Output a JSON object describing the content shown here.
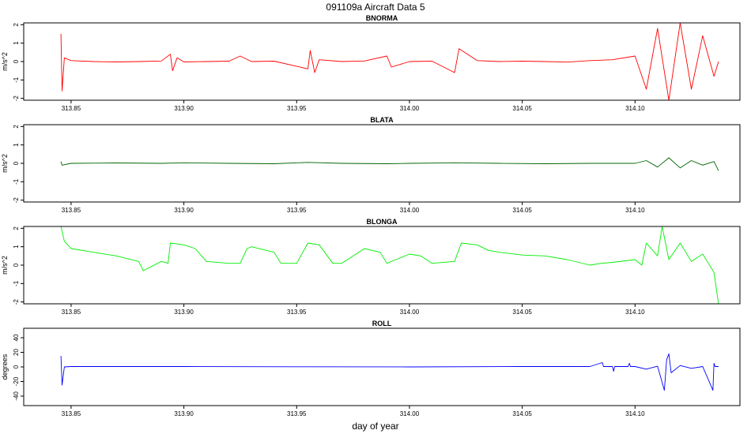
{
  "title": "091109a   Aircraft Data 5",
  "xlabel": "day of year",
  "chart_data": [
    {
      "type": "line",
      "title": "BNORMA",
      "ylabel": "m/s^2",
      "color": "#ff0000",
      "xlim": [
        313.829,
        314.1465
      ],
      "ylim": [
        -2.1,
        2.1
      ],
      "xticks": [
        313.85,
        313.9,
        313.95,
        314.0,
        314.05,
        314.1
      ],
      "xtick_labels": [
        "313.85",
        "313.90",
        "313.95",
        "314.00",
        "314.05",
        "314.10"
      ],
      "yticks": [
        -2,
        -1,
        0,
        1,
        2
      ],
      "ytick_labels": [
        "-2",
        "-1",
        "0",
        "1",
        "2"
      ],
      "series": [
        {
          "x": [
            313.8455,
            313.846,
            313.847,
            313.85,
            313.86,
            313.87,
            313.88,
            313.89,
            313.894,
            313.895,
            313.897,
            313.9,
            313.91,
            313.92,
            313.925,
            313.93,
            313.94,
            313.955,
            313.956,
            313.958,
            313.96,
            313.97,
            313.98,
            313.99,
            313.992,
            314.0,
            314.01,
            314.02,
            314.022,
            314.03,
            314.04,
            314.05,
            314.06,
            314.07,
            314.08,
            314.09,
            314.1,
            314.105,
            314.11,
            314.115,
            314.12,
            314.125,
            314.13,
            314.135,
            314.137
          ],
          "y": [
            1.5,
            -1.6,
            0.2,
            0.05,
            0.0,
            -0.02,
            0.0,
            0.03,
            0.4,
            -0.5,
            0.2,
            -0.02,
            0.0,
            0.02,
            0.3,
            0.0,
            0.02,
            -0.4,
            0.6,
            -0.6,
            0.1,
            0.0,
            0.03,
            0.3,
            -0.3,
            0.0,
            0.02,
            -0.6,
            0.7,
            0.05,
            0.0,
            0.02,
            0.0,
            -0.03,
            0.05,
            0.1,
            0.3,
            -1.5,
            1.8,
            -2.1,
            2.1,
            -1.5,
            1.4,
            -0.8,
            0.0
          ]
        }
      ]
    },
    {
      "type": "line",
      "title": "BLATA",
      "ylabel": "m/s^2",
      "color": "#006400",
      "xlim": [
        313.829,
        314.1465
      ],
      "ylim": [
        -2.1,
        2.1
      ],
      "xticks": [
        313.85,
        313.9,
        313.95,
        314.0,
        314.05,
        314.1
      ],
      "xtick_labels": [
        "313.85",
        "313.90",
        "313.95",
        "314.00",
        "314.05",
        "314.10"
      ],
      "yticks": [
        -2,
        -1,
        0,
        1,
        2
      ],
      "ytick_labels": [
        "-2",
        "-1",
        "0",
        "1",
        "2"
      ],
      "series": [
        {
          "x": [
            313.8455,
            313.846,
            313.85,
            313.87,
            313.89,
            313.9,
            313.92,
            313.94,
            313.955,
            313.97,
            313.99,
            314.0,
            314.02,
            314.04,
            314.06,
            314.08,
            314.1,
            314.105,
            314.11,
            314.115,
            314.12,
            314.125,
            314.13,
            314.135,
            314.137
          ],
          "y": [
            0.1,
            -0.1,
            0.0,
            0.02,
            0.0,
            0.03,
            0.0,
            -0.02,
            0.05,
            0.0,
            -0.02,
            0.0,
            0.03,
            0.0,
            -0.02,
            0.0,
            0.0,
            0.15,
            -0.2,
            0.3,
            -0.25,
            0.15,
            -0.1,
            0.1,
            -0.4
          ]
        }
      ]
    },
    {
      "type": "line",
      "title": "BLONGA",
      "ylabel": "m/s^2",
      "color": "#00ee00",
      "xlim": [
        313.829,
        314.1465
      ],
      "ylim": [
        -2.1,
        2.1
      ],
      "xticks": [
        313.85,
        313.9,
        313.95,
        314.0,
        314.05,
        314.1
      ],
      "xtick_labels": [
        "313.85",
        "313.90",
        "313.95",
        "314.00",
        "314.05",
        "314.10"
      ],
      "yticks": [
        -2,
        -1,
        0,
        1,
        2
      ],
      "ytick_labels": [
        "-2",
        "-1",
        "0",
        "1",
        "2"
      ],
      "series": [
        {
          "x": [
            313.8455,
            313.847,
            313.85,
            313.86,
            313.87,
            313.88,
            313.882,
            313.89,
            313.893,
            313.894,
            313.9,
            313.905,
            313.91,
            313.92,
            313.925,
            313.928,
            313.93,
            313.94,
            313.943,
            313.95,
            313.95,
            313.955,
            313.96,
            313.966,
            313.97,
            313.98,
            313.987,
            313.99,
            314.0,
            314.005,
            314.01,
            314.02,
            314.023,
            314.03,
            314.035,
            314.04,
            314.05,
            314.06,
            314.07,
            314.08,
            314.085,
            314.09,
            314.1,
            314.103,
            314.105,
            314.11,
            314.112,
            314.115,
            314.12,
            314.125,
            314.13,
            314.135,
            314.137
          ],
          "y": [
            2.1,
            1.3,
            0.9,
            0.7,
            0.5,
            0.2,
            -0.3,
            0.2,
            0.1,
            1.2,
            1.1,
            0.9,
            0.2,
            0.1,
            0.1,
            0.9,
            1.0,
            0.7,
            0.1,
            0.1,
            0.1,
            1.2,
            1.1,
            0.1,
            0.1,
            0.9,
            0.7,
            0.1,
            0.6,
            0.5,
            0.1,
            0.2,
            1.2,
            1.1,
            0.8,
            0.7,
            0.55,
            0.5,
            0.3,
            0.0,
            0.1,
            0.15,
            0.3,
            0.0,
            1.2,
            0.5,
            2.1,
            0.3,
            1.2,
            0.2,
            0.6,
            -0.4,
            -2.1
          ]
        }
      ]
    },
    {
      "type": "line",
      "title": "ROLL",
      "ylabel": "degrees",
      "color": "#0000ff",
      "xlim": [
        313.829,
        314.1465
      ],
      "ylim": [
        -53,
        53
      ],
      "xticks": [
        313.85,
        313.9,
        313.95,
        314.0,
        314.05,
        314.1
      ],
      "xtick_labels": [
        "313.85",
        "313.90",
        "313.95",
        "314.00",
        "314.05",
        "314.10"
      ],
      "yticks": [
        -40,
        -20,
        0,
        20,
        40
      ],
      "ytick_labels": [
        "-40",
        "-20",
        "0",
        "20",
        "40"
      ],
      "series": [
        {
          "x": [
            313.8455,
            313.846,
            313.847,
            313.85,
            313.9,
            313.95,
            314.0,
            314.05,
            314.08,
            314.0855,
            314.086,
            314.0865,
            314.09,
            314.0905,
            314.091,
            314.097,
            314.0975,
            314.098,
            314.1,
            314.105,
            314.11,
            314.113,
            314.114,
            314.115,
            314.116,
            314.12,
            314.125,
            314.13,
            314.1345,
            314.135,
            314.1355,
            314.137
          ],
          "y": [
            15,
            -25,
            0,
            0.5,
            0.5,
            0.2,
            0.0,
            0.5,
            0.5,
            6,
            0.5,
            0.5,
            0.5,
            -6,
            0.5,
            0.5,
            5,
            0.5,
            0.5,
            -3,
            1,
            -32,
            10,
            18,
            -8,
            2,
            -2,
            0.5,
            -32,
            5,
            0.5,
            0.5
          ]
        }
      ]
    }
  ]
}
